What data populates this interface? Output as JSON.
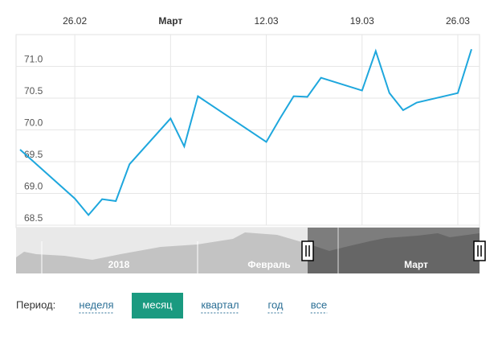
{
  "chart_data": {
    "type": "line",
    "x": [
      "22.02",
      "26.02",
      "27.02",
      "28.02",
      "01.03",
      "02.03",
      "05.03",
      "06.03",
      "07.03",
      "12.03",
      "13.03",
      "14.03",
      "15.03",
      "16.03",
      "19.03",
      "20.03",
      "21.03",
      "22.03",
      "23.03",
      "26.03",
      "27.03"
    ],
    "series": [
      {
        "color": "#1ea7dd",
        "values": [
          69.69,
          68.92,
          68.66,
          68.91,
          68.88,
          69.46,
          70.18,
          69.74,
          70.53,
          69.81,
          70.18,
          70.53,
          70.52,
          70.82,
          70.62,
          71.24,
          70.58,
          70.31,
          70.43,
          70.58,
          71.27
        ]
      }
    ],
    "xlim": [
      "22.02",
      "27.03"
    ],
    "xticks": [
      "26.02",
      {
        "value": "05.03",
        "label": "Март"
      },
      "12.03",
      "19.03",
      "26.03"
    ],
    "ylim": [
      68.5,
      71.5
    ],
    "yticks": [
      68.5,
      {
        "value": 69,
        "label": "69.0"
      },
      69.5,
      {
        "value": 70,
        "label": "70.0"
      },
      70.5,
      {
        "value": 71,
        "label": "71.0"
      }
    ],
    "grid": true,
    "navigator": {
      "labels": [
        "2018",
        "Февраль",
        "Март"
      ]
    }
  },
  "period": {
    "label": "Период:",
    "options": [
      "неделя",
      "месяц",
      "квартал",
      "год",
      "все"
    ],
    "selected": "месяц"
  }
}
